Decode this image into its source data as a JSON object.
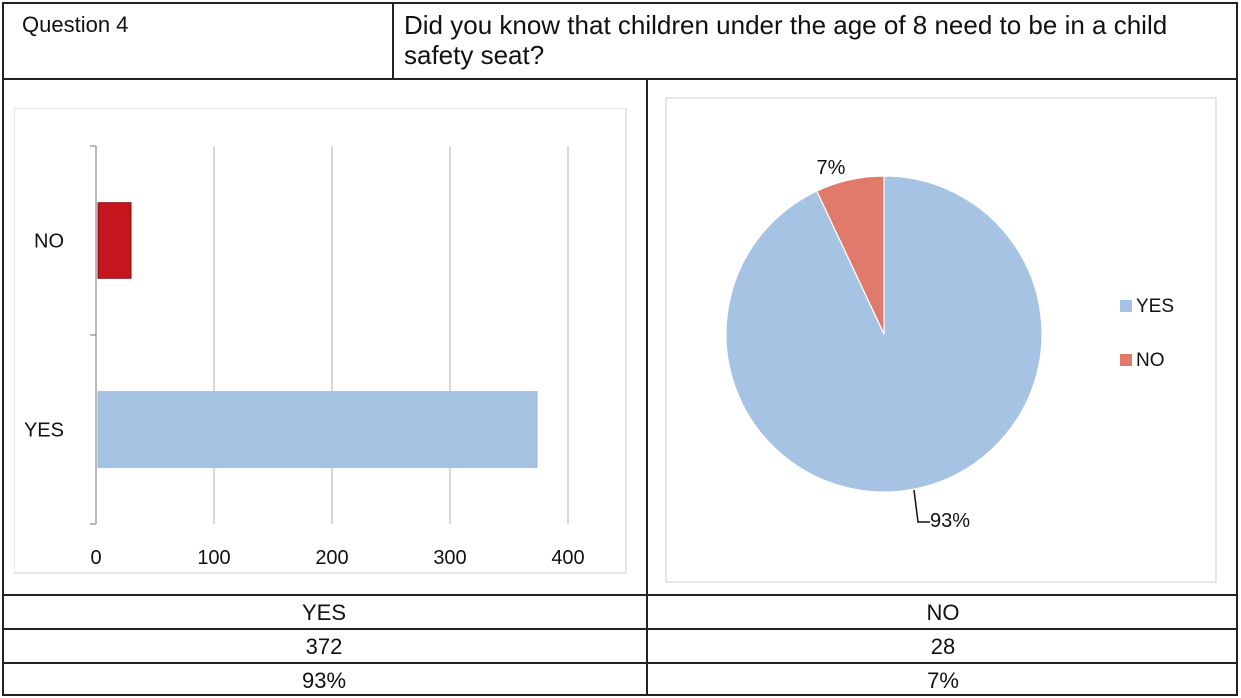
{
  "question": {
    "label": "Question 4",
    "text": "Did you know that children under the age of 8 need to be in a child safety seat?"
  },
  "chart_data": [
    {
      "type": "bar",
      "orientation": "horizontal",
      "categories": [
        "NO",
        "YES"
      ],
      "values": [
        28,
        372
      ],
      "colors": [
        "#c4161c",
        "#a6c3e4"
      ],
      "xlim": [
        0,
        400
      ],
      "xticks": [
        "0",
        "100",
        "200",
        "300",
        "400"
      ],
      "grid": true
    },
    {
      "type": "pie",
      "labels": [
        "YES",
        "NO"
      ],
      "values": [
        93,
        7
      ],
      "data_labels": [
        "93%",
        "7%"
      ],
      "colors": [
        "#a6c3e4",
        "#e07a6a"
      ],
      "legend": [
        "YES",
        "NO"
      ],
      "legend_position": "right"
    }
  ],
  "table": {
    "headers": [
      "YES",
      "NO"
    ],
    "counts": [
      "372",
      "28"
    ],
    "percents": [
      "93%",
      "7%"
    ]
  },
  "colors": {
    "bar_yes": "#a6c3e4",
    "bar_no": "#c4161c",
    "pie_yes": "#a6c3e4",
    "pie_no": "#e07a6a"
  }
}
